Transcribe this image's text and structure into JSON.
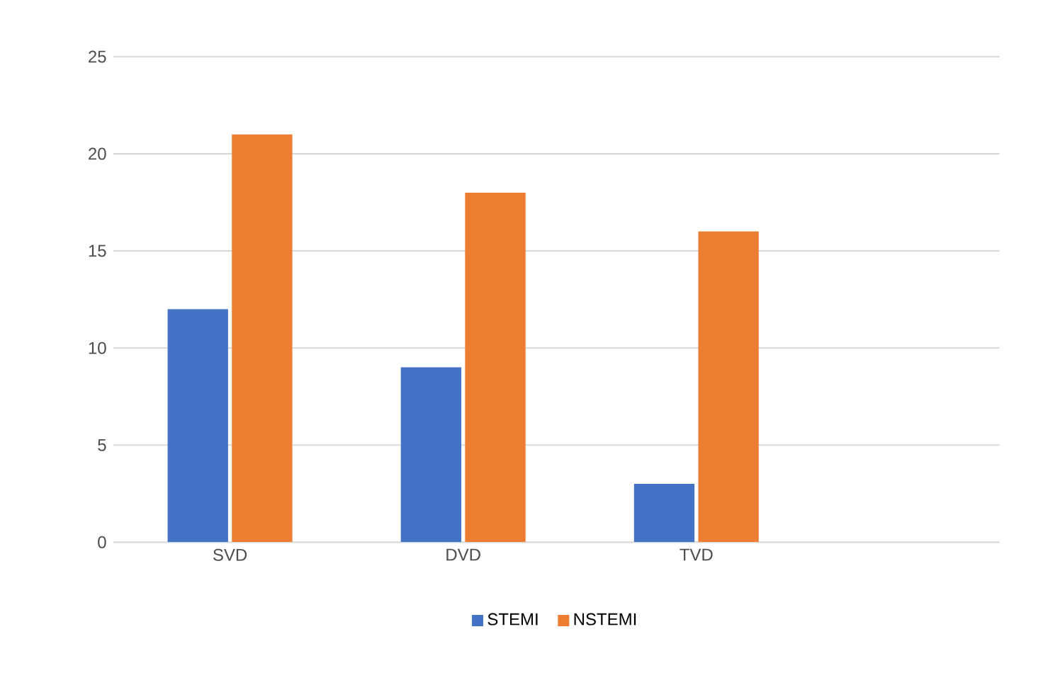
{
  "chart_data": {
    "type": "bar",
    "categories": [
      "SVD",
      "DVD",
      "TVD"
    ],
    "series": [
      {
        "name": "STEMI",
        "color": "#4472c4",
        "values": [
          12,
          9,
          3
        ]
      },
      {
        "name": "NSTEMI",
        "color": "#ed7d31",
        "values": [
          21,
          18,
          16
        ]
      }
    ],
    "ylim": [
      0,
      25
    ],
    "yticks": [
      0,
      5,
      10,
      15,
      20,
      25
    ],
    "grid": "y",
    "legend": "bottom"
  }
}
